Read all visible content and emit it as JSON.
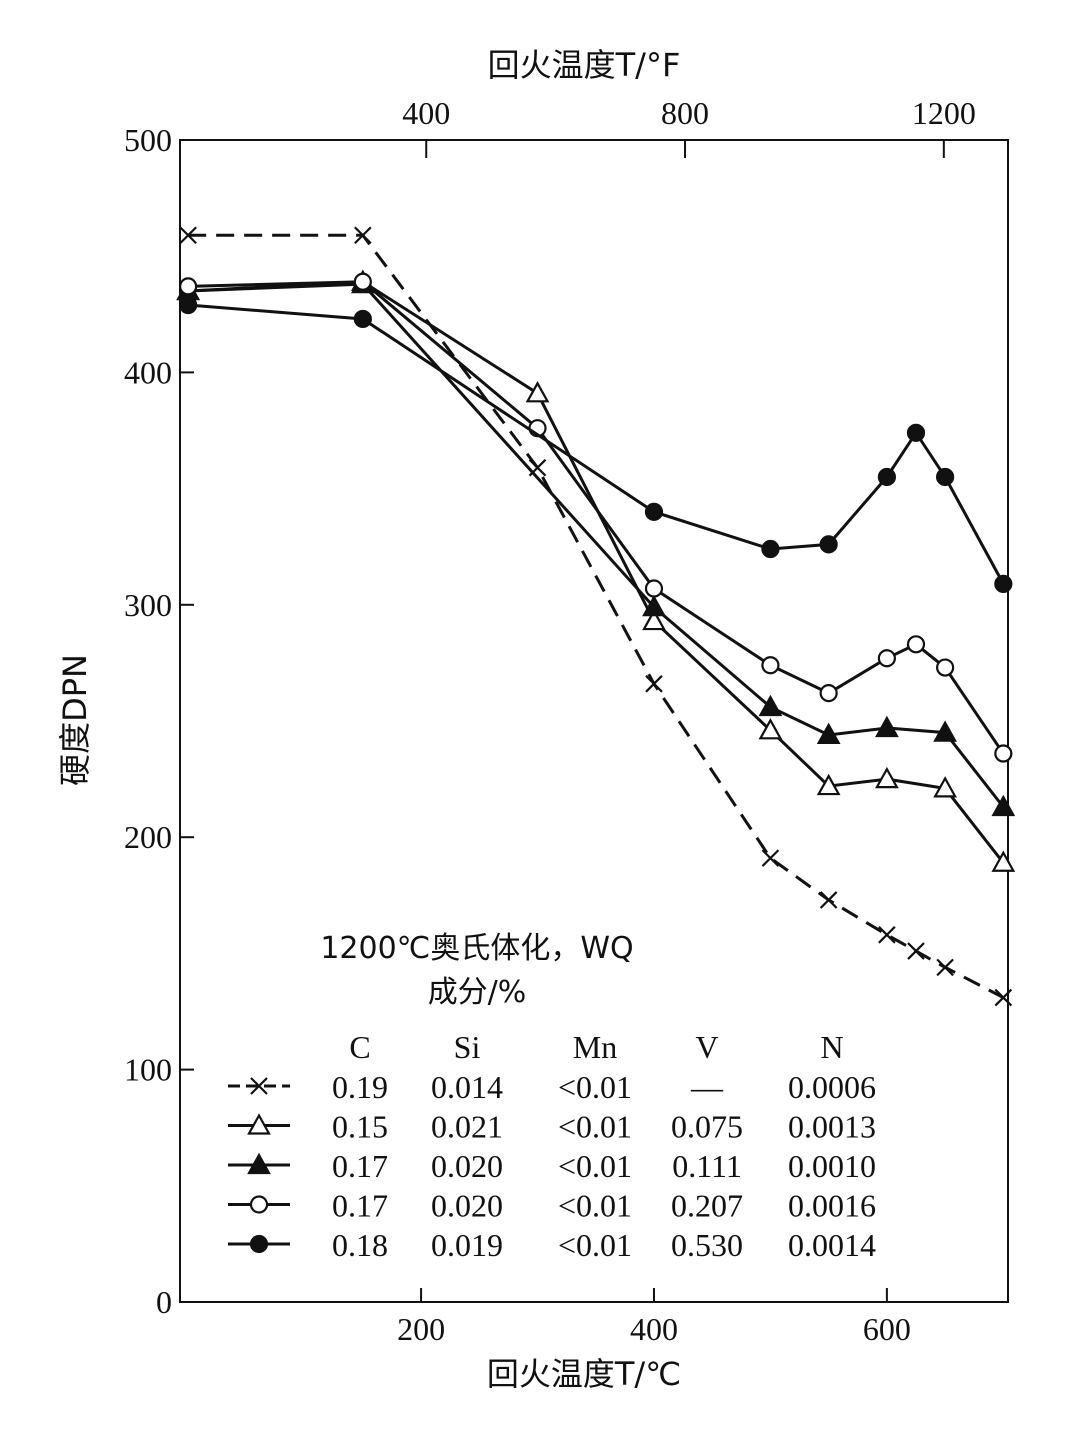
{
  "chart_data": {
    "type": "line",
    "xlabel": "回火温度T/℃",
    "x2label": "回火温度T/°F",
    "ylabel": "硬度DPN",
    "xlim": [
      -7,
      704
    ],
    "ylim": [
      0,
      500
    ],
    "xticks": [
      200,
      400,
      600
    ],
    "yticks": [
      0,
      100,
      200,
      300,
      400,
      500
    ],
    "x2ticks": [
      400,
      800,
      1200
    ],
    "grid": false,
    "legend_position": "bottom-left",
    "annotation": [
      "1200℃奥氏体化，WQ",
      "成分/%"
    ],
    "legend_columns": [
      "C",
      "Si",
      "Mn",
      "V",
      "N"
    ],
    "series": [
      {
        "marker": "x",
        "dashed": true,
        "composition": [
          "0.19",
          "0.014",
          "<0.01",
          "—",
          "0.0006"
        ],
        "x": [
          0,
          150,
          300,
          400,
          500,
          550,
          600,
          625,
          650,
          700
        ],
        "y": [
          459,
          459,
          359,
          266,
          191,
          173,
          158,
          151,
          144,
          131
        ]
      },
      {
        "marker": "open-triangle",
        "dashed": false,
        "composition": [
          "0.15",
          "0.021",
          "<0.01",
          "0.075",
          "0.0013"
        ],
        "x": [
          0,
          150,
          300,
          400,
          500,
          550,
          600,
          650,
          700
        ],
        "y": [
          435,
          439,
          391,
          293,
          246,
          222,
          225,
          221,
          189
        ]
      },
      {
        "marker": "filled-triangle",
        "dashed": false,
        "composition": [
          "0.17",
          "0.020",
          "<0.01",
          "0.111",
          "0.0010"
        ],
        "x": [
          0,
          150,
          400,
          500,
          550,
          600,
          650,
          700
        ],
        "y": [
          435,
          438,
          299,
          256,
          244,
          247,
          245,
          213
        ]
      },
      {
        "marker": "open-circle",
        "dashed": false,
        "composition": [
          "0.17",
          "0.020",
          "<0.01",
          "0.207",
          "0.0016"
        ],
        "x": [
          0,
          150,
          300,
          400,
          500,
          550,
          600,
          625,
          650,
          700
        ],
        "y": [
          437,
          439,
          376,
          307,
          274,
          262,
          277,
          283,
          273,
          236
        ]
      },
      {
        "marker": "filled-circle",
        "dashed": false,
        "composition": [
          "0.18",
          "0.019",
          "<0.01",
          "0.530",
          "0.0014"
        ],
        "x": [
          0,
          150,
          400,
          500,
          550,
          600,
          625,
          650,
          700
        ],
        "y": [
          429,
          423,
          340,
          324,
          326,
          355,
          374,
          355,
          309
        ]
      }
    ]
  }
}
